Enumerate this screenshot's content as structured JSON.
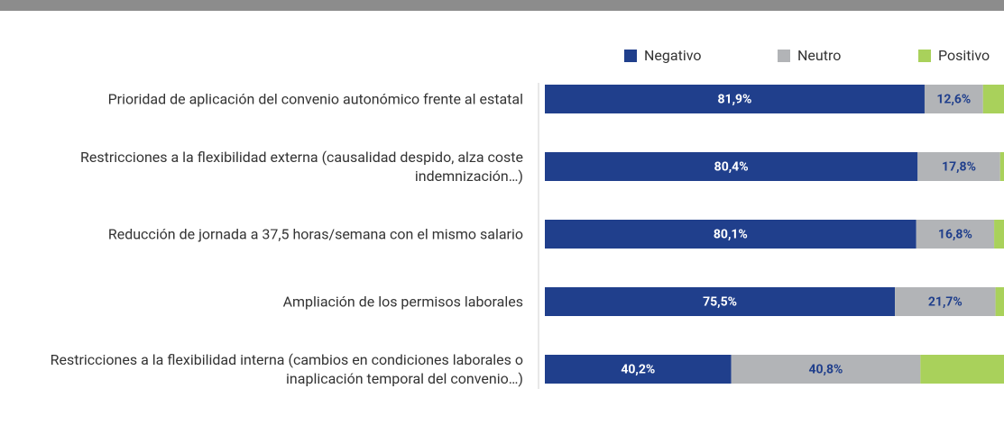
{
  "chart_data": {
    "type": "stacked-barh",
    "categories": [
      "Prioridad de aplicación del convenio autonómico frente al estatal",
      "Restricciones a la flexibilidad externa (causalidad despido, alza coste indemnización…)",
      "Reducción de jornada a 37,5 horas/semana con el mismo salario",
      "Ampliación de los permisos laborales",
      "Restricciones a la flexibilidad interna (cambios en condiciones laborales o inaplicación temporal del convenio…)"
    ],
    "series": [
      {
        "name": "Negativo",
        "color": "#203f8c",
        "label_color": "#ffffff",
        "values": [
          81.9,
          80.4,
          80.1,
          75.5,
          40.2
        ],
        "value_labels": [
          "81,9%",
          "80,4%",
          "80,1%",
          "75,5%",
          "40,2%"
        ]
      },
      {
        "name": "Neutro",
        "color": "#b2b4b7",
        "label_color": "#203f8c",
        "values": [
          12.6,
          17.8,
          16.8,
          21.7,
          40.8
        ],
        "value_labels": [
          "12,6%",
          "17,8%",
          "16,8%",
          "21,7%",
          "40,8%"
        ]
      },
      {
        "name": "Positivo",
        "color": "#a9d15b",
        "values": [
          5.5,
          1.8,
          3.1,
          2.8,
          19.0
        ]
      }
    ],
    "xlim": [
      0,
      100
    ],
    "legend": "top-right"
  }
}
